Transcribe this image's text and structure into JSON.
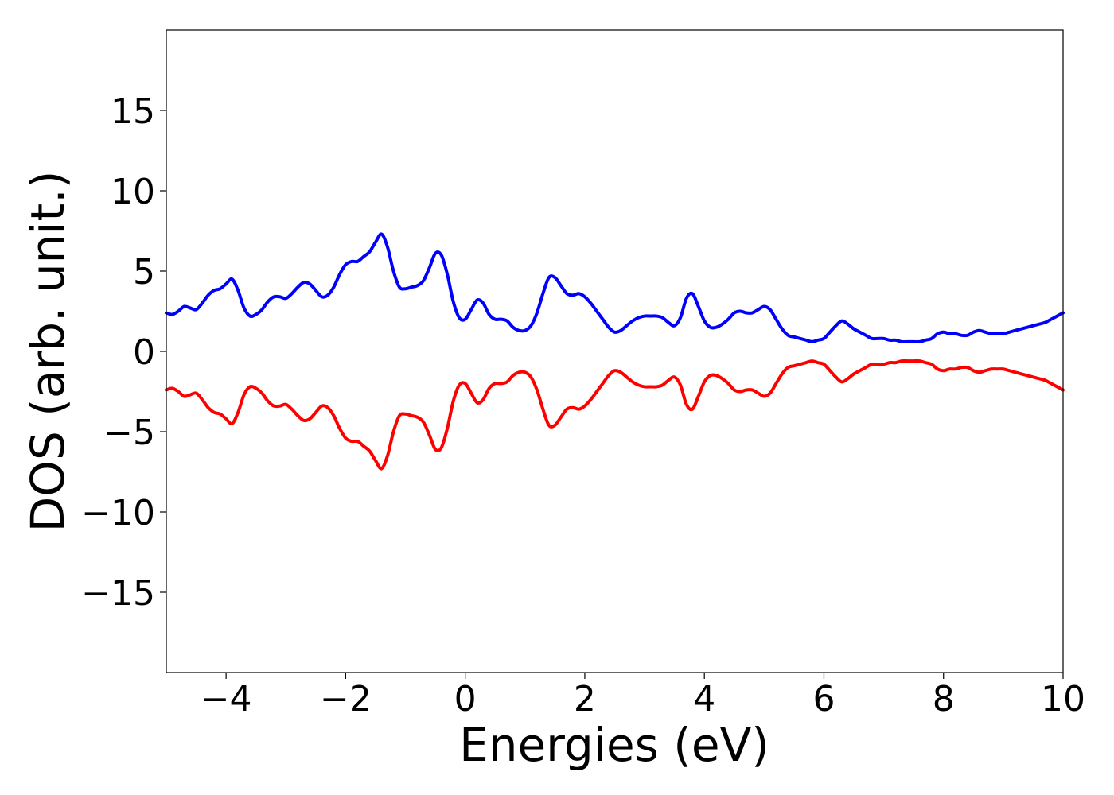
{
  "chart_data": {
    "type": "line",
    "title": "",
    "xlabel": "Energies (eV)",
    "ylabel": "DOS (arb. unit.)",
    "xlim": [
      -5,
      10
    ],
    "ylim": [
      -20,
      20
    ],
    "x_ticks": [
      -4,
      -2,
      0,
      2,
      4,
      6,
      8,
      10
    ],
    "x_tick_labels": [
      "−4",
      "−2",
      "0",
      "2",
      "4",
      "6",
      "8",
      "10"
    ],
    "y_ticks": [
      -15,
      -10,
      -5,
      0,
      5,
      10,
      15
    ],
    "y_tick_labels": [
      "−15",
      "−10",
      "−5",
      "0",
      "5",
      "10",
      "15"
    ],
    "grid": false,
    "legend": "none",
    "series": [
      {
        "color": "#0000ff",
        "x": [
          -5.0,
          -4.9,
          -4.8,
          -4.7,
          -4.6,
          -4.5,
          -4.4,
          -4.3,
          -4.2,
          -4.1,
          -4.0,
          -3.9,
          -3.8,
          -3.7,
          -3.6,
          -3.5,
          -3.4,
          -3.3,
          -3.2,
          -3.1,
          -3.0,
          -2.9,
          -2.8,
          -2.7,
          -2.6,
          -2.5,
          -2.4,
          -2.3,
          -2.2,
          -2.1,
          -2.0,
          -1.9,
          -1.8,
          -1.7,
          -1.6,
          -1.5,
          -1.4,
          -1.3,
          -1.2,
          -1.1,
          -1.0,
          -0.9,
          -0.8,
          -0.7,
          -0.6,
          -0.5,
          -0.4,
          -0.3,
          -0.2,
          -0.1,
          0.0,
          0.1,
          0.2,
          0.3,
          0.4,
          0.5,
          0.6,
          0.7,
          0.8,
          0.9,
          1.0,
          1.1,
          1.2,
          1.3,
          1.4,
          1.5,
          1.6,
          1.7,
          1.8,
          1.9,
          2.0,
          2.1,
          2.2,
          2.3,
          2.4,
          2.5,
          2.6,
          2.7,
          2.8,
          2.9,
          3.0,
          3.1,
          3.2,
          3.3,
          3.4,
          3.5,
          3.6,
          3.7,
          3.8,
          3.9,
          4.0,
          4.1,
          4.2,
          4.3,
          4.4,
          4.5,
          4.6,
          4.7,
          4.8,
          4.9,
          5.0,
          5.1,
          5.2,
          5.3,
          5.4,
          5.5,
          5.6,
          5.7,
          5.8,
          5.9,
          6.0,
          6.1,
          6.2,
          6.3,
          6.4,
          6.5,
          6.6,
          6.7,
          6.8,
          6.9,
          7.0,
          7.1,
          7.2,
          7.3,
          7.4,
          7.5,
          7.6,
          7.7,
          7.8,
          7.9,
          8.0,
          8.1,
          8.2,
          8.3,
          8.4,
          8.5,
          8.6,
          8.7,
          8.8,
          8.9,
          9.0,
          9.1,
          9.2,
          9.3,
          9.4,
          9.5,
          9.6,
          9.7,
          9.8,
          9.9,
          10.0
        ],
        "values": [
          2.4,
          2.3,
          2.5,
          2.8,
          2.7,
          2.6,
          3.0,
          3.5,
          3.8,
          3.9,
          4.2,
          4.5,
          3.8,
          2.7,
          2.2,
          2.3,
          2.6,
          3.1,
          3.4,
          3.4,
          3.3,
          3.6,
          4.0,
          4.3,
          4.2,
          3.8,
          3.4,
          3.5,
          4.0,
          4.8,
          5.4,
          5.6,
          5.6,
          5.9,
          6.2,
          6.8,
          7.3,
          6.5,
          5.0,
          4.0,
          3.9,
          4.0,
          4.1,
          4.4,
          5.2,
          6.1,
          6.0,
          4.8,
          3.1,
          2.1,
          2.0,
          2.6,
          3.2,
          3.0,
          2.3,
          2.0,
          2.0,
          1.9,
          1.5,
          1.3,
          1.3,
          1.6,
          2.4,
          3.6,
          4.6,
          4.6,
          4.1,
          3.6,
          3.5,
          3.6,
          3.4,
          3.0,
          2.5,
          2.0,
          1.5,
          1.2,
          1.3,
          1.6,
          1.9,
          2.1,
          2.2,
          2.2,
          2.2,
          2.1,
          1.8,
          1.6,
          2.1,
          3.3,
          3.6,
          2.8,
          1.9,
          1.5,
          1.5,
          1.7,
          2.0,
          2.4,
          2.5,
          2.4,
          2.4,
          2.6,
          2.8,
          2.6,
          2.0,
          1.4,
          1.0,
          0.9,
          0.8,
          0.7,
          0.6,
          0.7,
          0.8,
          1.2,
          1.6,
          1.9,
          1.7,
          1.4,
          1.2,
          1.0,
          0.8,
          0.8,
          0.8,
          0.7,
          0.7,
          0.6,
          0.6,
          0.6,
          0.6,
          0.7,
          0.8,
          1.1,
          1.2,
          1.1,
          1.1,
          1.0,
          1.0,
          1.2,
          1.3,
          1.2,
          1.1,
          1.1,
          1.1,
          1.2,
          1.3,
          1.4,
          1.5,
          1.6,
          1.7,
          1.8,
          2.0,
          2.2,
          2.4
        ]
      },
      {
        "color": "#ff0000",
        "x": [
          -5.0,
          -4.9,
          -4.8,
          -4.7,
          -4.6,
          -4.5,
          -4.4,
          -4.3,
          -4.2,
          -4.1,
          -4.0,
          -3.9,
          -3.8,
          -3.7,
          -3.6,
          -3.5,
          -3.4,
          -3.3,
          -3.2,
          -3.1,
          -3.0,
          -2.9,
          -2.8,
          -2.7,
          -2.6,
          -2.5,
          -2.4,
          -2.3,
          -2.2,
          -2.1,
          -2.0,
          -1.9,
          -1.8,
          -1.7,
          -1.6,
          -1.5,
          -1.4,
          -1.3,
          -1.2,
          -1.1,
          -1.0,
          -0.9,
          -0.8,
          -0.7,
          -0.6,
          -0.5,
          -0.4,
          -0.3,
          -0.2,
          -0.1,
          0.0,
          0.1,
          0.2,
          0.3,
          0.4,
          0.5,
          0.6,
          0.7,
          0.8,
          0.9,
          1.0,
          1.1,
          1.2,
          1.3,
          1.4,
          1.5,
          1.6,
          1.7,
          1.8,
          1.9,
          2.0,
          2.1,
          2.2,
          2.3,
          2.4,
          2.5,
          2.6,
          2.7,
          2.8,
          2.9,
          3.0,
          3.1,
          3.2,
          3.3,
          3.4,
          3.5,
          3.6,
          3.7,
          3.8,
          3.9,
          4.0,
          4.1,
          4.2,
          4.3,
          4.4,
          4.5,
          4.6,
          4.7,
          4.8,
          4.9,
          5.0,
          5.1,
          5.2,
          5.3,
          5.4,
          5.5,
          5.6,
          5.7,
          5.8,
          5.9,
          6.0,
          6.1,
          6.2,
          6.3,
          6.4,
          6.5,
          6.6,
          6.7,
          6.8,
          6.9,
          7.0,
          7.1,
          7.2,
          7.3,
          7.4,
          7.5,
          7.6,
          7.7,
          7.8,
          7.9,
          8.0,
          8.1,
          8.2,
          8.3,
          8.4,
          8.5,
          8.6,
          8.7,
          8.8,
          8.9,
          9.0,
          9.1,
          9.2,
          9.3,
          9.4,
          9.5,
          9.6,
          9.7,
          9.8,
          9.9,
          10.0
        ],
        "values": [
          -2.4,
          -2.3,
          -2.5,
          -2.8,
          -2.7,
          -2.6,
          -3.0,
          -3.5,
          -3.8,
          -3.9,
          -4.2,
          -4.5,
          -3.8,
          -2.7,
          -2.2,
          -2.3,
          -2.6,
          -3.1,
          -3.4,
          -3.4,
          -3.3,
          -3.6,
          -4.0,
          -4.3,
          -4.2,
          -3.8,
          -3.4,
          -3.5,
          -4.0,
          -4.8,
          -5.4,
          -5.6,
          -5.6,
          -5.9,
          -6.2,
          -6.8,
          -7.3,
          -6.5,
          -5.0,
          -4.0,
          -3.9,
          -4.0,
          -4.1,
          -4.4,
          -5.2,
          -6.1,
          -6.0,
          -4.8,
          -3.1,
          -2.1,
          -2.0,
          -2.6,
          -3.2,
          -3.0,
          -2.3,
          -2.0,
          -2.0,
          -1.9,
          -1.5,
          -1.3,
          -1.3,
          -1.6,
          -2.4,
          -3.6,
          -4.6,
          -4.6,
          -4.1,
          -3.6,
          -3.5,
          -3.6,
          -3.4,
          -3.0,
          -2.5,
          -2.0,
          -1.5,
          -1.2,
          -1.3,
          -1.6,
          -1.9,
          -2.1,
          -2.2,
          -2.2,
          -2.2,
          -2.1,
          -1.8,
          -1.6,
          -2.1,
          -3.3,
          -3.6,
          -2.8,
          -1.9,
          -1.5,
          -1.5,
          -1.7,
          -2.0,
          -2.4,
          -2.5,
          -2.4,
          -2.4,
          -2.6,
          -2.8,
          -2.6,
          -2.0,
          -1.4,
          -1.0,
          -0.9,
          -0.8,
          -0.7,
          -0.6,
          -0.7,
          -0.8,
          -1.2,
          -1.6,
          -1.9,
          -1.7,
          -1.4,
          -1.2,
          -1.0,
          -0.8,
          -0.8,
          -0.8,
          -0.7,
          -0.7,
          -0.6,
          -0.6,
          -0.6,
          -0.6,
          -0.7,
          -0.8,
          -1.1,
          -1.2,
          -1.1,
          -1.1,
          -1.0,
          -1.0,
          -1.2,
          -1.3,
          -1.2,
          -1.1,
          -1.1,
          -1.1,
          -1.2,
          -1.3,
          -1.4,
          -1.5,
          -1.6,
          -1.7,
          -1.8,
          -2.0,
          -2.2,
          -2.4
        ]
      }
    ]
  }
}
